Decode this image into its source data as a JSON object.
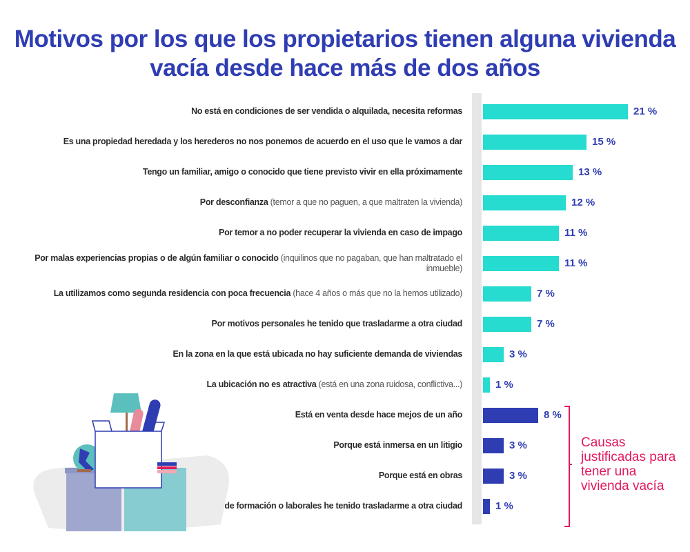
{
  "chart_data": {
    "type": "bar",
    "orientation": "horizontal",
    "title": "Motivos por los que los propietarios tienen alguna vivienda vacía desde hace más de dos años",
    "unit": "%",
    "xlim": [
      0,
      21
    ],
    "grid": false,
    "categories": [
      {
        "bold": "No está en condiciones de ser vendida o alquilada, necesita reformas",
        "light": "",
        "value": 21,
        "group": "other",
        "value_label": "21 %"
      },
      {
        "bold": "Es una propiedad heredada y los herederos no nos ponemos de acuerdo en el uso que le vamos a dar",
        "light": "",
        "value": 15,
        "group": "other",
        "value_label": "15 %"
      },
      {
        "bold": "Tengo un familiar, amigo o conocido que tiene previsto vivir en ella próximamente",
        "light": "",
        "value": 13,
        "group": "other",
        "value_label": "13 %"
      },
      {
        "bold": "Por desconfianza",
        "light": " (temor a que no paguen, a que maltraten la vivienda)",
        "value": 12,
        "group": "other",
        "value_label": "12 %"
      },
      {
        "bold": "Por temor a no poder recuperar la vivienda en caso de impago",
        "light": "",
        "value": 11,
        "group": "other",
        "value_label": "11 %"
      },
      {
        "bold": "Por malas experiencias propias o de algún familiar o conocido",
        "light": " (inquilinos que no pagaban, que han maltratado el inmueble)",
        "value": 11,
        "group": "other",
        "value_label": "11 %"
      },
      {
        "bold": "La utilizamos como segunda residencia con poca frecuencia",
        "light": " (hace 4 años o más que no la hemos utilizado)",
        "value": 7,
        "group": "other",
        "value_label": "7 %"
      },
      {
        "bold": "Por motivos personales he tenido que trasladarme a otra ciudad",
        "light": "",
        "value": 7,
        "group": "other",
        "value_label": "7 %"
      },
      {
        "bold": "En la zona en la que está ubicada no hay suficiente demanda de viviendas",
        "light": "",
        "value": 3,
        "group": "other",
        "value_label": "3 %"
      },
      {
        "bold": "La ubicación no es atractiva",
        "light": " (está en una zona ruidosa, conflictiva...)",
        "value": 1,
        "group": "other",
        "value_label": "1 %"
      },
      {
        "bold": "Está en venta desde hace mejos de un año",
        "light": "",
        "value": 8,
        "group": "justified",
        "value_label": "8 %"
      },
      {
        "bold": "Porque está inmersa en un litigio",
        "light": "",
        "value": 3,
        "group": "justified",
        "value_label": "3 %"
      },
      {
        "bold": "Porque está en obras",
        "light": "",
        "value": 3,
        "group": "justified",
        "value_label": "3 %"
      },
      {
        "bold": "Por motivos de formación o laborales he tenido trasladarme a otra ciudad",
        "light": "",
        "value": 1,
        "group": "justified",
        "value_label": "1 %"
      }
    ],
    "annotation": "Causas justificadas para tener una vivienda vacía",
    "colors": {
      "other": "#26dbcf",
      "justified": "#2f3db3",
      "title": "#2f3db3",
      "annotation": "#e3195a"
    }
  }
}
